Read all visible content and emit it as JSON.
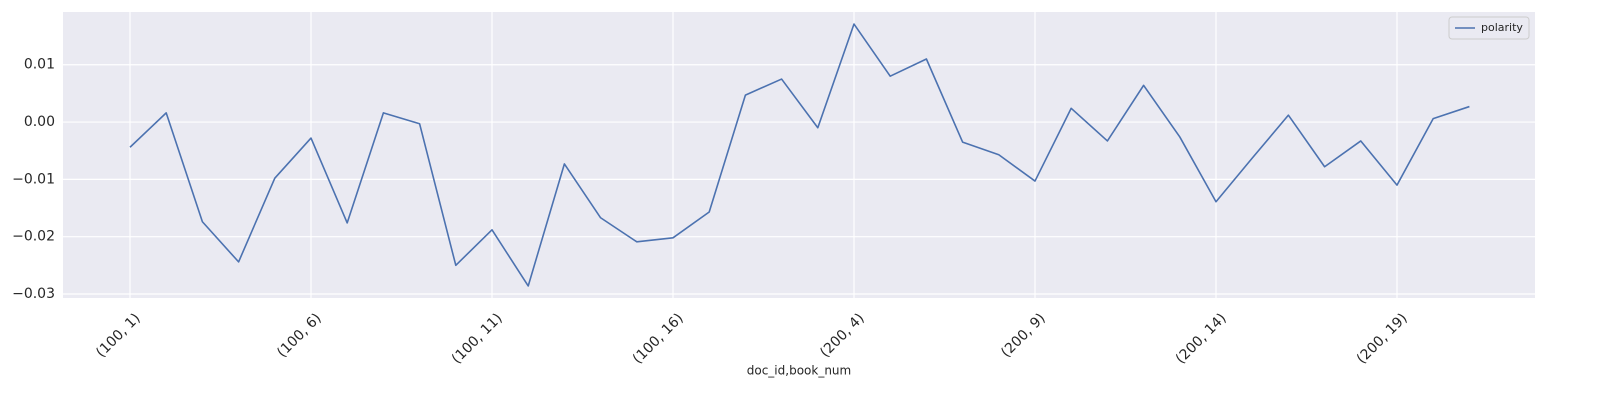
{
  "chart_data": {
    "type": "line",
    "xlabel": "doc_id,book_num",
    "categories": [
      "(100, 1)",
      null,
      null,
      null,
      null,
      "(100, 6)",
      null,
      null,
      null,
      null,
      "(100, 11)",
      null,
      null,
      null,
      null,
      "(100, 16)",
      null,
      null,
      null,
      null,
      "(200, 4)",
      null,
      null,
      null,
      null,
      "(200, 9)",
      null,
      null,
      null,
      null,
      "(200, 14)",
      null,
      null,
      null,
      null,
      "(200, 19)",
      null,
      null
    ],
    "series": [
      {
        "name": "polarity",
        "color": "#4c72b0",
        "values": [
          -0.0044,
          0.0016,
          -0.0174,
          -0.0244,
          -0.0098,
          -0.0028,
          -0.0176,
          0.0016,
          -0.0003,
          -0.025,
          -0.0188,
          -0.0286,
          -0.0073,
          -0.0167,
          -0.0209,
          -0.0202,
          -0.0157,
          0.0047,
          0.0075,
          -0.001,
          0.0171,
          0.008,
          0.011,
          -0.0035,
          -0.0057,
          -0.0103,
          0.0024,
          -0.0033,
          0.0064,
          -0.0026,
          -0.0139,
          -0.0063,
          0.0012,
          -0.0078,
          -0.0033,
          -0.011,
          0.0006,
          0.0027
        ]
      }
    ],
    "ylim": [
      -0.0307,
      0.0192
    ],
    "yticks": [
      {
        "value": -0.03,
        "label": "−0.03"
      },
      {
        "value": -0.02,
        "label": "−0.02"
      },
      {
        "value": -0.01,
        "label": "−0.01"
      },
      {
        "value": 0,
        "label": "0.00"
      },
      {
        "value": 0.01,
        "label": "0.01"
      }
    ],
    "grid": true,
    "legend": "upper right",
    "background": "#eaeaf2"
  }
}
